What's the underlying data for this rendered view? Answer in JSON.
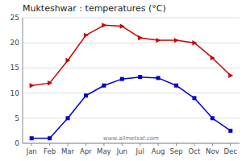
{
  "chart_data": {
    "type": "line",
    "title": "Mukteshwar : temperatures (°C)",
    "categories": [
      "Jan",
      "Feb",
      "Mar",
      "Apr",
      "May",
      "Jun",
      "Jul",
      "Aug",
      "Sep",
      "Oct",
      "Nov",
      "Dec"
    ],
    "series": [
      {
        "color": "#cc0000",
        "marker": "triangle-right",
        "values": [
          11.5,
          12.0,
          16.5,
          21.5,
          23.5,
          23.3,
          21.0,
          20.5,
          20.5,
          20.0,
          17.0,
          13.5
        ]
      },
      {
        "color": "#0000cc",
        "marker": "square",
        "values": [
          1.0,
          1.0,
          5.0,
          9.5,
          11.5,
          12.8,
          13.2,
          13.0,
          11.5,
          9.0,
          5.0,
          2.5
        ]
      }
    ],
    "ylim": [
      0,
      25
    ],
    "yticks": [
      0,
      5,
      10,
      15,
      20,
      25
    ],
    "grid": true,
    "annotations": [
      "www.allmetsat.com"
    ]
  }
}
